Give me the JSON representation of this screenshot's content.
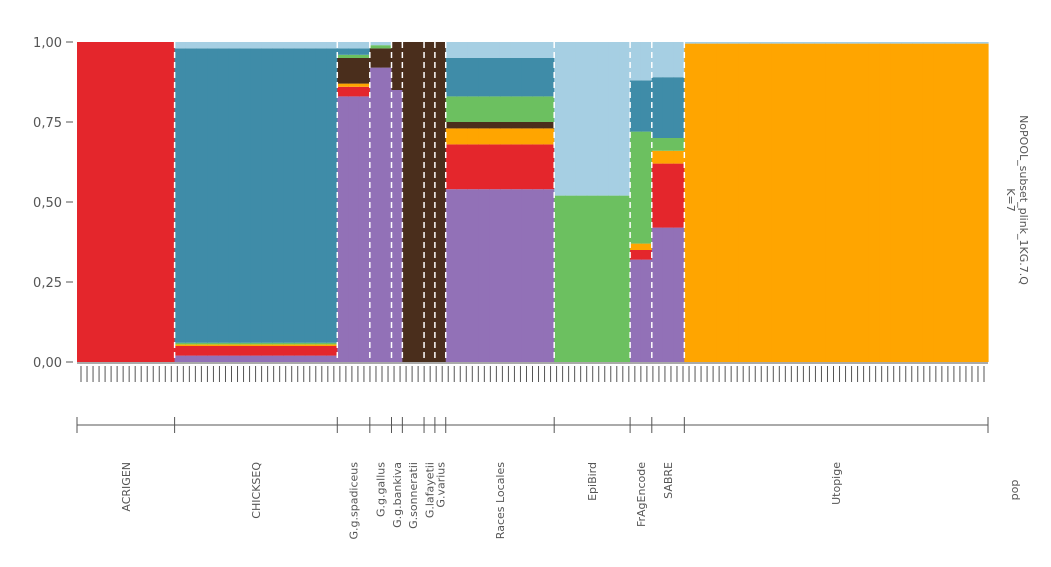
{
  "chart_data": {
    "type": "bar",
    "subtype": "stacked-admixture",
    "title": "NoPOOL_subset_plink_1KG.7.Q",
    "k_label": "K=7",
    "xlabel": "pop",
    "ylim": [
      0,
      1
    ],
    "y_ticks": [
      "0,00",
      "0,25",
      "0,50",
      "0,75",
      "1,00"
    ],
    "y_tick_values": [
      0,
      0.25,
      0.5,
      0.75,
      1.0
    ],
    "components": [
      {
        "name": "K1",
        "color": "#e4262c"
      },
      {
        "name": "K2",
        "color": "#3f8ca8"
      },
      {
        "name": "K3",
        "color": "#6cc060"
      },
      {
        "name": "K4",
        "color": "#a6cfe3"
      },
      {
        "name": "K5",
        "color": "#ffa500"
      },
      {
        "name": "K6",
        "color": "#4a2e1c"
      },
      {
        "name": "K7",
        "color": "#9271b7"
      }
    ],
    "populations": [
      {
        "name": "ACRIGEN",
        "n": 9,
        "mean": {
          "K1": 1.0
        }
      },
      {
        "name": "CHICKSEQ",
        "n": 15,
        "mean": {
          "K7": 0.02,
          "K1": 0.03,
          "K5": 0.005,
          "K3": 0.005,
          "K2": 0.92,
          "K4": 0.02
        }
      },
      {
        "name": "G.g.spadiceus",
        "n": 3,
        "mean": {
          "K7": 0.83,
          "K1": 0.03,
          "K5": 0.01,
          "K6": 0.08,
          "K3": 0.01,
          "K2": 0.02,
          "K4": 0.02
        }
      },
      {
        "name": "G.g.gallus",
        "n": 2,
        "mean": {
          "K7": 0.92,
          "K6": 0.06,
          "K3": 0.01,
          "K4": 0.01
        }
      },
      {
        "name": "G.g.bankiva",
        "n": 1,
        "mean": {
          "K7": 0.85,
          "K6": 0.15
        }
      },
      {
        "name": "G.sonneratii",
        "n": 2,
        "mean": {
          "K6": 1.0
        }
      },
      {
        "name": "G.lafayetii",
        "n": 1,
        "mean": {
          "K6": 1.0
        }
      },
      {
        "name": "G.varius",
        "n": 1,
        "mean": {
          "K6": 1.0
        }
      },
      {
        "name": "Races Locales",
        "n": 10,
        "mean": {
          "K7": 0.54,
          "K1": 0.14,
          "K5": 0.05,
          "K6": 0.02,
          "K3": 0.08,
          "K2": 0.12,
          "K4": 0.05
        }
      },
      {
        "name": "EpiBird",
        "n": 7,
        "mean": {
          "K3": 0.52,
          "K4": 0.48
        }
      },
      {
        "name": "FrAgEncode",
        "n": 2,
        "mean": {
          "K7": 0.32,
          "K5": 0.02,
          "K1": 0.03,
          "K3": 0.35,
          "K2": 0.16,
          "K4": 0.12
        }
      },
      {
        "name": "SABRE",
        "n": 3,
        "mean": {
          "K7": 0.42,
          "K5": 0.04,
          "K1": 0.2,
          "K3": 0.04,
          "K2": 0.19,
          "K4": 0.11
        }
      },
      {
        "name": "Utopige",
        "n": 28,
        "mean": {
          "K5": 0.995,
          "K4": 0.005
        }
      }
    ]
  }
}
